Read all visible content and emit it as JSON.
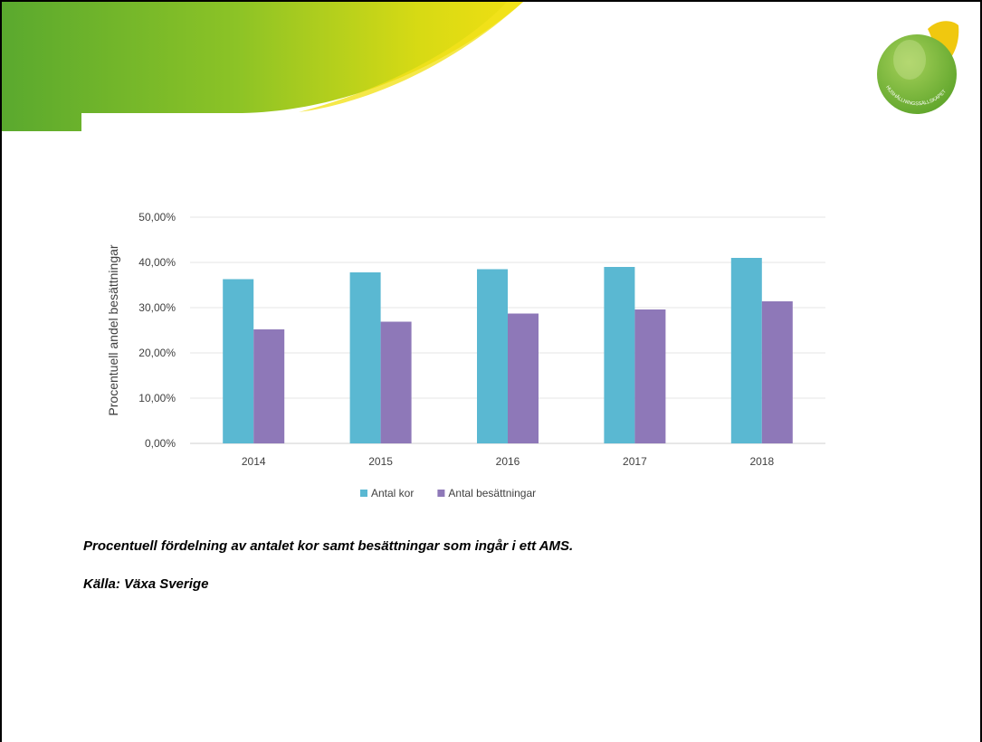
{
  "chart_data": {
    "type": "bar",
    "categories": [
      "2014",
      "2015",
      "2016",
      "2017",
      "2018"
    ],
    "series": [
      {
        "name": "Antal kor",
        "values": [
          36.3,
          37.8,
          38.5,
          39.0,
          41.0
        ],
        "color": "#5ab8d2"
      },
      {
        "name": "Antal besättningar",
        "values": [
          25.2,
          26.9,
          28.7,
          29.6,
          31.4
        ],
        "color": "#8e78b8"
      }
    ],
    "title": "",
    "xlabel": "",
    "ylabel": "Procentuell andel besättningar",
    "ylim": [
      0,
      50
    ],
    "yticks": [
      "0,00%",
      "10,00%",
      "20,00%",
      "30,00%",
      "40,00%",
      "50,00%"
    ],
    "grid": true,
    "legend_position": "bottom"
  },
  "caption": "Procentuell fördelning av antalet kor samt besättningar som ingår i ett AMS.",
  "source": "Källa: Växa Sverige",
  "logo_text": "HUSHÅLLNINGSSÄLLSKAPET",
  "colors": {
    "banner_green": "#6ab42d",
    "banner_yellow": "#e2dd10",
    "logo_green": "#7bb73a",
    "logo_yellow": "#f0d20f"
  }
}
